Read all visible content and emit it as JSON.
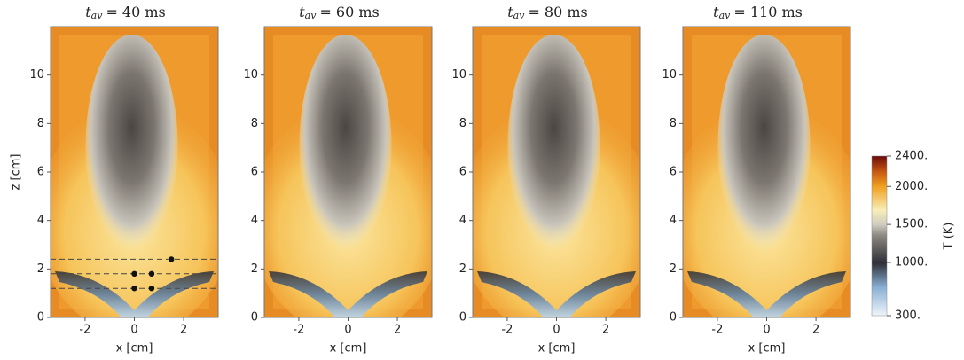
{
  "chart_data": [
    {
      "type": "heatmap",
      "title": {
        "var": "t",
        "sub": "av",
        "text": "= 40 ms"
      },
      "xlabel": "x [cm]",
      "ylabel": "z [cm]",
      "xlim": [
        -3.4,
        3.4
      ],
      "ylim": [
        0,
        12
      ],
      "xticks": [
        -2,
        0,
        2
      ],
      "yticks": [
        0,
        2,
        4,
        6,
        8,
        10
      ],
      "hlines": [
        1.2,
        1.8,
        2.4
      ],
      "points": {
        "x": [
          0,
          0.7,
          0,
          0.7,
          1.5
        ],
        "z": [
          1.2,
          1.2,
          1.8,
          1.8,
          2.4
        ]
      }
    },
    {
      "type": "heatmap",
      "title": {
        "var": "t",
        "sub": "av",
        "text": "= 60 ms"
      },
      "xlabel": "x [cm]",
      "xlim": [
        -3.4,
        3.4
      ],
      "ylim": [
        0,
        12
      ],
      "xticks": [
        -2,
        0,
        2
      ],
      "yticks": [
        0,
        2,
        4,
        6,
        8,
        10
      ]
    },
    {
      "type": "heatmap",
      "title": {
        "var": "t",
        "sub": "av",
        "text": "= 80 ms"
      },
      "xlabel": "x [cm]",
      "xlim": [
        -3.4,
        3.4
      ],
      "ylim": [
        0,
        12
      ],
      "xticks": [
        -2,
        0,
        2
      ],
      "yticks": [
        0,
        2,
        4,
        6,
        8,
        10
      ]
    },
    {
      "type": "heatmap",
      "title": {
        "var": "t",
        "sub": "av",
        "text": "= 110 ms"
      },
      "xlabel": "x [cm]",
      "xlim": [
        -3.4,
        3.4
      ],
      "ylim": [
        0,
        12
      ],
      "xticks": [
        -2,
        0,
        2
      ],
      "yticks": [
        0,
        2,
        4,
        6,
        8,
        10
      ]
    }
  ],
  "colorbar": {
    "label": "T (K)",
    "clim": [
      300,
      2400
    ],
    "ticks": [
      {
        "value": 2400,
        "label": "2400."
      },
      {
        "value": 2000,
        "label": "2000."
      },
      {
        "value": 1500,
        "label": "1500."
      },
      {
        "value": 1000,
        "label": "1000."
      },
      {
        "value": 300,
        "label": "300."
      }
    ]
  }
}
